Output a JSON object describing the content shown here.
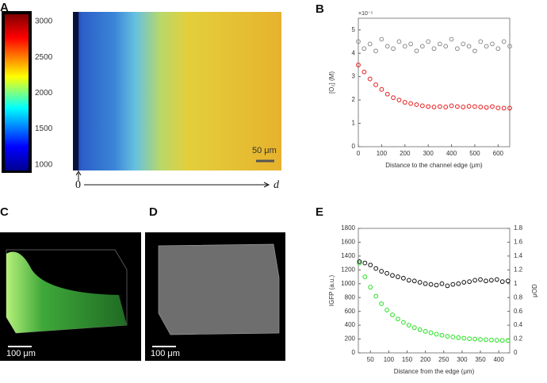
{
  "panels": {
    "a": "A",
    "b": "B",
    "c": "C",
    "d": "D",
    "e": "E"
  },
  "panel_a": {
    "colorbar": {
      "lim": [
        920,
        3100
      ],
      "ticks": [
        1000,
        1500,
        2000,
        2500,
        3000
      ]
    },
    "scale_bar": "50 μm",
    "axis_origin": "0",
    "axis_label": "d"
  },
  "panel_c": {
    "scale_bar": "100 μm"
  },
  "panel_d": {
    "scale_bar": "100 μm"
  },
  "chart_data": [
    {
      "type": "scatter",
      "xlabel": "Distance to the channel edge (μm)",
      "ylabel": "[O₂] (M)",
      "multiplier": "×10⁻⁵",
      "x": [
        0,
        25,
        50,
        75,
        100,
        125,
        150,
        175,
        200,
        225,
        250,
        275,
        300,
        325,
        350,
        375,
        400,
        425,
        450,
        475,
        500,
        525,
        550,
        575,
        600,
        625,
        650
      ],
      "xlim": [
        0,
        650
      ],
      "xticks": [
        0,
        100,
        200,
        300,
        400,
        500,
        600
      ],
      "ylim": [
        0,
        5.5
      ],
      "yticks": [
        0,
        1,
        2,
        3,
        4,
        5
      ],
      "series": [
        {
          "color": "#8c8c8c",
          "values": [
            4.5,
            4.2,
            4.4,
            4.1,
            4.6,
            4.3,
            4.2,
            4.5,
            4.3,
            4.4,
            4.1,
            4.3,
            4.5,
            4.2,
            4.4,
            4.3,
            4.6,
            4.2,
            4.4,
            4.3,
            4.1,
            4.5,
            4.3,
            4.4,
            4.2,
            4.5,
            4.3
          ]
        },
        {
          "color": "#e8191c",
          "values": [
            3.5,
            3.2,
            2.9,
            2.65,
            2.45,
            2.25,
            2.1,
            2.0,
            1.9,
            1.85,
            1.8,
            1.75,
            1.72,
            1.7,
            1.72,
            1.7,
            1.75,
            1.72,
            1.7,
            1.73,
            1.72,
            1.7,
            1.68,
            1.72,
            1.66,
            1.65,
            1.65
          ]
        }
      ]
    },
    {
      "type": "scatter",
      "xlabel": "Distance from the edge (μm)",
      "ylabel": "IGFP (a.u.)",
      "y2label": "μOD",
      "x": [
        20,
        35,
        50,
        65,
        80,
        95,
        110,
        125,
        140,
        155,
        170,
        185,
        200,
        215,
        230,
        245,
        260,
        275,
        290,
        305,
        320,
        335,
        350,
        365,
        380,
        395,
        410,
        425
      ],
      "xlim": [
        17,
        430
      ],
      "xticks": [
        50,
        100,
        150,
        200,
        250,
        300,
        350,
        400
      ],
      "ylim": [
        0,
        1800
      ],
      "yticks": [
        0,
        200,
        400,
        600,
        800,
        1000,
        1200,
        1400,
        1600,
        1800
      ],
      "y2lim": [
        0,
        1.8
      ],
      "y2ticks": [
        0,
        0.2,
        0.4,
        0.6,
        0.8,
        1,
        1.2,
        1.4,
        1.6,
        1.8
      ],
      "series": [
        {
          "color": "#22e01c",
          "values": [
            1300,
            1100,
            950,
            820,
            710,
            620,
            550,
            490,
            440,
            400,
            365,
            335,
            310,
            290,
            270,
            255,
            240,
            230,
            220,
            212,
            205,
            200,
            195,
            190,
            186,
            183,
            180,
            178
          ]
        },
        {
          "color": "#111111",
          "axis": "y2",
          "values": [
            1.32,
            1.3,
            1.27,
            1.22,
            1.18,
            1.15,
            1.12,
            1.1,
            1.08,
            1.05,
            1.04,
            1.02,
            1.0,
            0.99,
            0.98,
            1.0,
            0.97,
            0.99,
            1.0,
            1.02,
            1.03,
            1.05,
            1.06,
            1.04,
            1.05,
            1.06,
            1.03,
            1.04
          ]
        }
      ]
    }
  ]
}
